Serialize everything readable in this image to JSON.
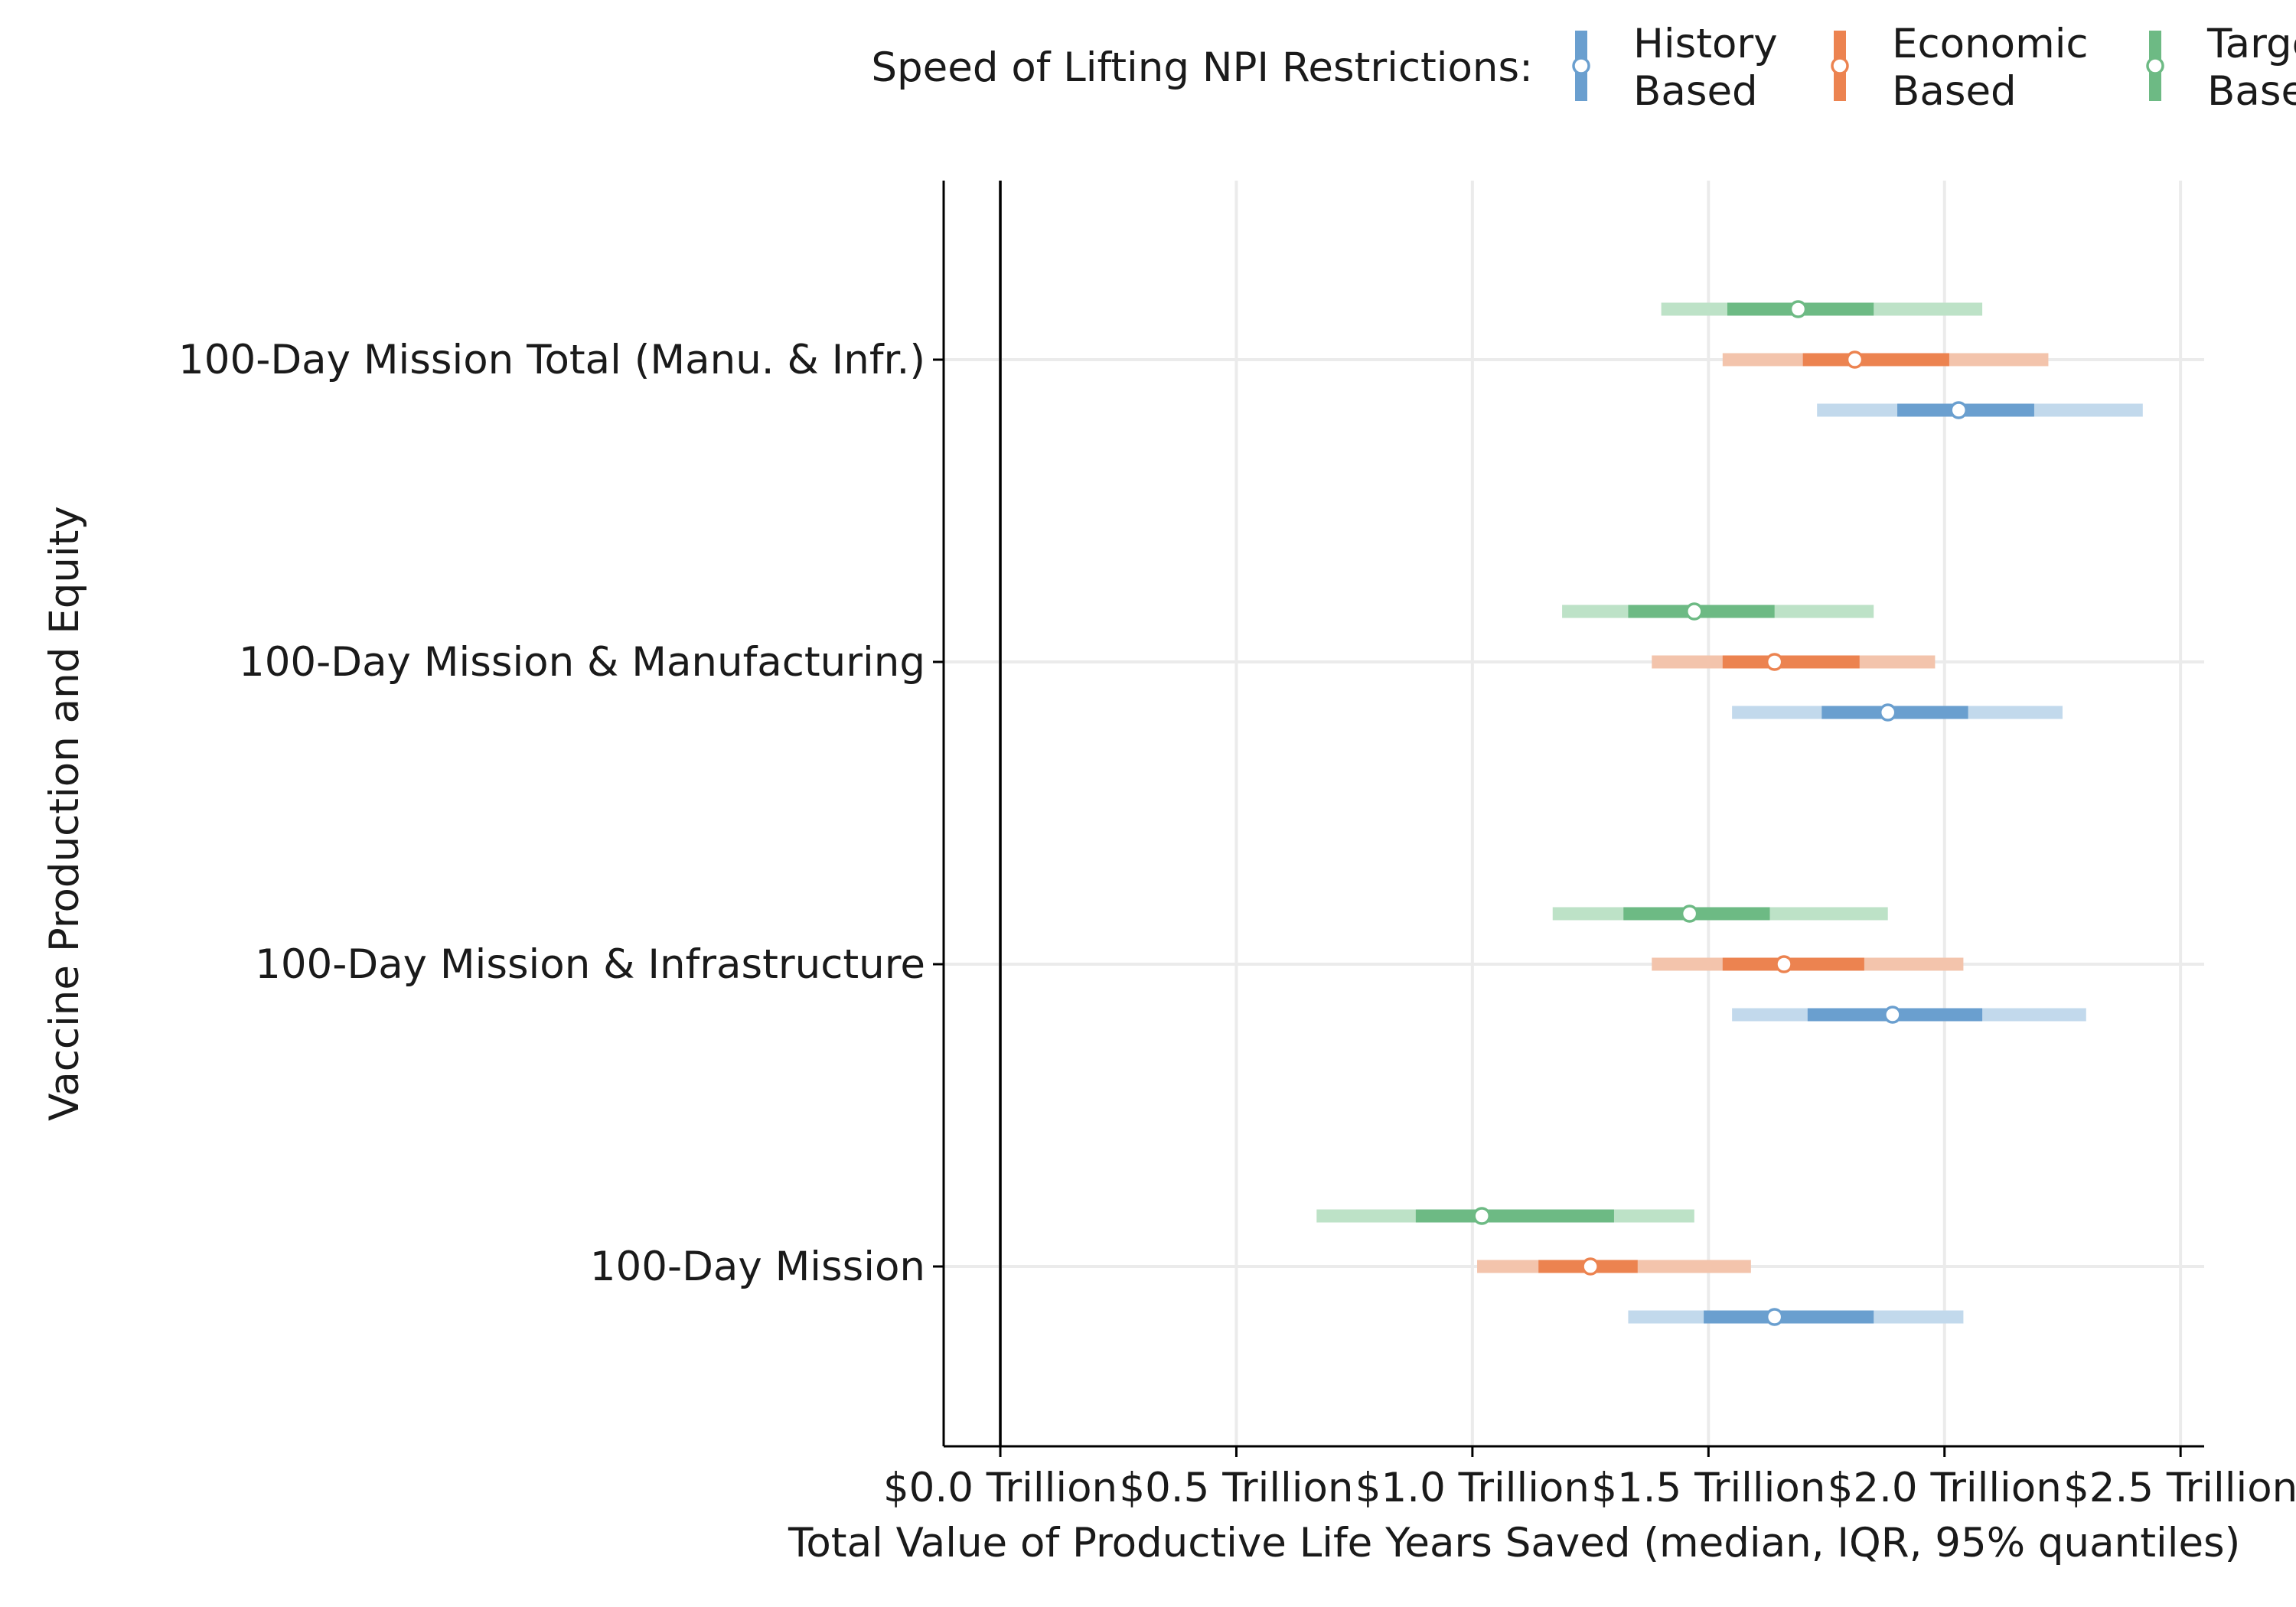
{
  "chart_data": {
    "type": "interval",
    "title": "",
    "xlabel": "Total Value of Productive Life Years Saved (median, IQR, 95% quantiles)",
    "ylabel": "Vaccine Production and Equity",
    "xlim": [
      -0.12,
      2.55
    ],
    "x_ticks": [
      0.0,
      0.5,
      1.0,
      1.5,
      2.0,
      2.5
    ],
    "x_tick_labels": [
      "$0.0 Trillion",
      "$0.5 Trillion",
      "$1.0 Trillion",
      "$1.5 Trillion",
      "$2.0 Trillion",
      "$2.5 Trillion"
    ],
    "reference_line_x": 0.0,
    "grid": true,
    "legend": {
      "title": "Speed of Lifting NPI Restrictions:",
      "position": "top",
      "entries": [
        {
          "name": "History Based",
          "lines": [
            "History",
            "Based"
          ]
        },
        {
          "name": "Economic Based",
          "lines": [
            "Economic",
            "Based"
          ]
        },
        {
          "name": "Target Based",
          "lines": [
            "Target",
            "Based"
          ]
        }
      ]
    },
    "categories": [
      "100-Day Mission Total (Manu. & Infr.)",
      "100-Day Mission & Manufacturing",
      "100-Day Mission & Infrastructure",
      "100-Day Mission"
    ],
    "series": [
      {
        "name": "History Based",
        "color": "#6a9fcf",
        "light_color": "#c2d9ec",
        "data": [
          {
            "category": "100-Day Mission Total (Manu. & Infr.)",
            "median": 2.03,
            "q25": 1.9,
            "q75": 2.19,
            "q025": 1.73,
            "q975": 2.42
          },
          {
            "category": "100-Day Mission & Manufacturing",
            "median": 1.88,
            "q25": 1.74,
            "q75": 2.05,
            "q025": 1.55,
            "q975": 2.25
          },
          {
            "category": "100-Day Mission & Infrastructure",
            "median": 1.89,
            "q25": 1.71,
            "q75": 2.08,
            "q025": 1.55,
            "q975": 2.3
          },
          {
            "category": "100-Day Mission",
            "median": 1.64,
            "q25": 1.49,
            "q75": 1.85,
            "q025": 1.33,
            "q975": 2.04
          }
        ]
      },
      {
        "name": "Economic Based",
        "color": "#ec8350",
        "light_color": "#f3c4ac",
        "data": [
          {
            "category": "100-Day Mission Total (Manu. & Infr.)",
            "median": 1.81,
            "q25": 1.7,
            "q75": 2.01,
            "q025": 1.53,
            "q975": 2.22
          },
          {
            "category": "100-Day Mission & Manufacturing",
            "median": 1.64,
            "q25": 1.53,
            "q75": 1.82,
            "q025": 1.38,
            "q975": 1.98
          },
          {
            "category": "100-Day Mission & Infrastructure",
            "median": 1.66,
            "q25": 1.53,
            "q75": 1.83,
            "q025": 1.38,
            "q975": 2.04
          },
          {
            "category": "100-Day Mission",
            "median": 1.25,
            "q25": 1.14,
            "q75": 1.35,
            "q025": 1.01,
            "q975": 1.59
          }
        ]
      },
      {
        "name": "Target Based",
        "color": "#6dba84",
        "light_color": "#bde2c7",
        "data": [
          {
            "category": "100-Day Mission Total (Manu. & Infr.)",
            "median": 1.69,
            "q25": 1.54,
            "q75": 1.85,
            "q025": 1.4,
            "q975": 2.08
          },
          {
            "category": "100-Day Mission & Manufacturing",
            "median": 1.47,
            "q25": 1.33,
            "q75": 1.64,
            "q025": 1.19,
            "q975": 1.85
          },
          {
            "category": "100-Day Mission & Infrastructure",
            "median": 1.46,
            "q25": 1.32,
            "q75": 1.63,
            "q025": 1.17,
            "q975": 1.88
          },
          {
            "category": "100-Day Mission",
            "median": 1.02,
            "q25": 0.88,
            "q75": 1.3,
            "q025": 0.67,
            "q975": 1.47
          }
        ]
      }
    ]
  }
}
